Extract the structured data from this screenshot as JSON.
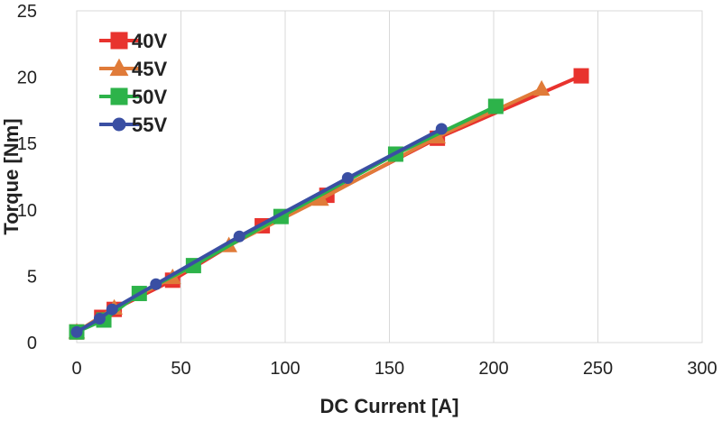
{
  "chart_data": {
    "type": "line",
    "title": "",
    "xlabel": "DC Current [A]",
    "ylabel": "Torque [Nm]",
    "xlim": [
      0,
      300
    ],
    "ylim": [
      0,
      25
    ],
    "x_ticks": [
      "0",
      "50",
      "100",
      "150",
      "200",
      "250",
      "300"
    ],
    "y_ticks": [
      "0",
      "5",
      "10",
      "15",
      "20",
      "25"
    ],
    "grid": "vertical",
    "legend_position": "top-left",
    "series": [
      {
        "name": "40V",
        "color": "#e8332e",
        "marker": "square",
        "points": [
          [
            0,
            0.8
          ],
          [
            12,
            1.9
          ],
          [
            18,
            2.5
          ],
          [
            46,
            4.7
          ],
          [
            89,
            8.8
          ],
          [
            120,
            11.1
          ],
          [
            173,
            15.4
          ],
          [
            242,
            20.1
          ]
        ]
      },
      {
        "name": "45V",
        "color": "#e07b39",
        "marker": "triangle",
        "points": [
          [
            0,
            0.8
          ],
          [
            18,
            2.6
          ],
          [
            46,
            4.9
          ],
          [
            73,
            7.3
          ],
          [
            117,
            10.8
          ],
          [
            173,
            15.5
          ],
          [
            223,
            19.1
          ]
        ]
      },
      {
        "name": "50V",
        "color": "#2db34a",
        "marker": "square",
        "points": [
          [
            0,
            0.8
          ],
          [
            13,
            1.7
          ],
          [
            30,
            3.7
          ],
          [
            56,
            5.8
          ],
          [
            98,
            9.5
          ],
          [
            153,
            14.2
          ],
          [
            201,
            17.8
          ]
        ]
      },
      {
        "name": "55V",
        "color": "#3a4fa3",
        "marker": "circle",
        "points": [
          [
            0,
            0.8
          ],
          [
            11,
            1.8
          ],
          [
            17,
            2.5
          ],
          [
            38,
            4.4
          ],
          [
            78,
            8.0
          ],
          [
            130,
            12.4
          ],
          [
            175,
            16.1
          ]
        ]
      }
    ]
  }
}
